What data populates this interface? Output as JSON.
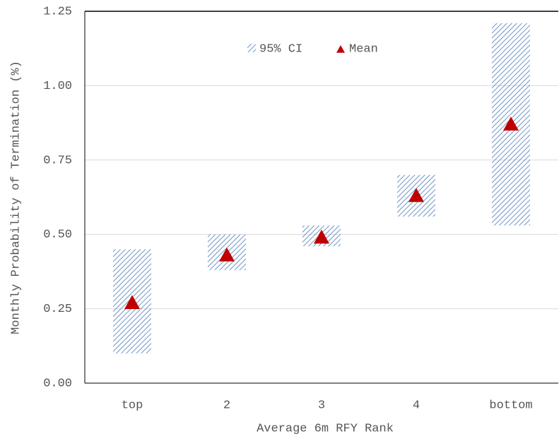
{
  "chart_data": {
    "type": "range",
    "x_label": "Average 6m RFY Rank",
    "y_label": "Monthly Probability of Termination (%)",
    "categories": [
      "top",
      "2",
      "3",
      "4",
      "bottom"
    ],
    "series": [
      {
        "name": "95% CI",
        "color": "#4a7ab5",
        "low": [
          0.1,
          0.38,
          0.46,
          0.56,
          0.53
        ],
        "high": [
          0.45,
          0.5,
          0.53,
          0.7,
          1.21
        ]
      },
      {
        "name": "Mean",
        "color": "#c00000",
        "values": [
          0.27,
          0.43,
          0.49,
          0.63,
          0.87
        ]
      }
    ],
    "ylim": [
      0,
      1.25
    ],
    "yticks": [
      {
        "value": 0,
        "label": "0.00"
      },
      {
        "value": 0.25,
        "label": "0.25"
      },
      {
        "value": 0.5,
        "label": "0.50"
      },
      {
        "value": 0.75,
        "label": "0.75"
      },
      {
        "value": 1,
        "label": "1.00"
      },
      {
        "value": 1.25,
        "label": "1.25"
      }
    ],
    "grid": true
  }
}
